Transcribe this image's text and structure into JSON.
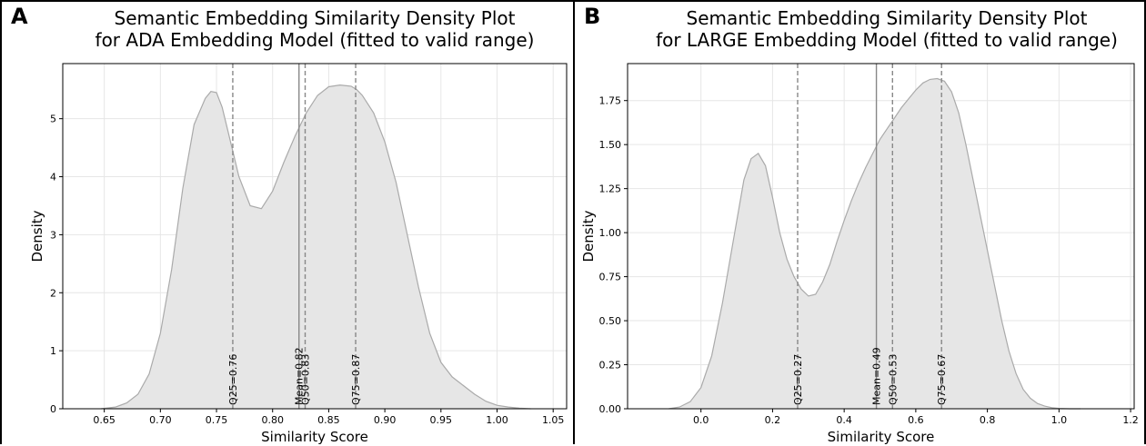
{
  "chart_data": [
    {
      "type": "area",
      "panel_label": "A",
      "title_lines": [
        "Semantic Embedding Similarity Density Plot",
        "for ADA Embedding Model (fitted to valid range)"
      ],
      "xlabel": "Similarity Score",
      "ylabel": "Density",
      "xlim": [
        0.613,
        1.062
      ],
      "ylim": [
        0,
        5.95
      ],
      "xticks": [
        0.65,
        0.7,
        0.75,
        0.8,
        0.85,
        0.9,
        0.95,
        1.0,
        1.05
      ],
      "xtick_labels": [
        "0.65",
        "0.70",
        "0.75",
        "0.80",
        "0.85",
        "0.90",
        "0.95",
        "1.00",
        "1.05"
      ],
      "yticks": [
        0,
        1,
        2,
        3,
        4,
        5
      ],
      "ytick_labels": [
        "0",
        "1",
        "2",
        "3",
        "4",
        "5"
      ],
      "grid": true,
      "fill_color": "#e6e6e6",
      "line_color": "#aaaaaa",
      "curve": {
        "x": [
          0.647,
          0.66,
          0.67,
          0.68,
          0.69,
          0.7,
          0.71,
          0.72,
          0.73,
          0.74,
          0.745,
          0.75,
          0.755,
          0.76,
          0.77,
          0.78,
          0.79,
          0.8,
          0.81,
          0.82,
          0.83,
          0.84,
          0.85,
          0.86,
          0.87,
          0.875,
          0.88,
          0.89,
          0.9,
          0.91,
          0.92,
          0.93,
          0.94,
          0.95,
          0.96,
          0.97,
          0.98,
          0.99,
          1.0,
          1.01,
          1.02,
          1.03
        ],
        "y": [
          0.0,
          0.03,
          0.1,
          0.25,
          0.6,
          1.3,
          2.4,
          3.8,
          4.9,
          5.35,
          5.47,
          5.45,
          5.2,
          4.8,
          4.0,
          3.5,
          3.45,
          3.75,
          4.25,
          4.7,
          5.1,
          5.4,
          5.55,
          5.58,
          5.56,
          5.5,
          5.4,
          5.1,
          4.6,
          3.9,
          3.0,
          2.1,
          1.3,
          0.8,
          0.55,
          0.4,
          0.25,
          0.13,
          0.06,
          0.03,
          0.01,
          0.0
        ]
      },
      "reference_lines": [
        {
          "label": "Q25=0.76",
          "x": 0.7645,
          "style": "dashed"
        },
        {
          "label": "Mean=0.82",
          "x": 0.8235,
          "style": "solid"
        },
        {
          "label": "Q50=0.83",
          "x": 0.829,
          "style": "dashed"
        },
        {
          "label": "Q75=0.87",
          "x": 0.874,
          "style": "dashed"
        }
      ]
    },
    {
      "type": "area",
      "panel_label": "B",
      "title_lines": [
        "Semantic Embedding Similarity Density Plot",
        "for LARGE Embedding Model (fitted to valid range)"
      ],
      "xlabel": "Similarity Score",
      "ylabel": "Density",
      "xlim": [
        -0.205,
        1.21
      ],
      "ylim": [
        0,
        1.96
      ],
      "xticks": [
        0.0,
        0.2,
        0.4,
        0.6,
        0.8,
        1.0,
        1.2
      ],
      "xtick_labels": [
        "0.0",
        "0.2",
        "0.4",
        "0.6",
        "0.8",
        "1.0",
        "1.2"
      ],
      "yticks": [
        0,
        0.25,
        0.5,
        0.75,
        1.0,
        1.25,
        1.5,
        1.75
      ],
      "ytick_labels": [
        "0.00",
        "0.25",
        "0.50",
        "0.75",
        "1.00",
        "1.25",
        "1.50",
        "1.75"
      ],
      "grid": true,
      "fill_color": "#e6e6e6",
      "line_color": "#aaaaaa",
      "curve": {
        "x": [
          -0.09,
          -0.06,
          -0.03,
          0.0,
          0.03,
          0.06,
          0.09,
          0.12,
          0.14,
          0.16,
          0.18,
          0.2,
          0.22,
          0.24,
          0.26,
          0.28,
          0.3,
          0.32,
          0.34,
          0.36,
          0.38,
          0.4,
          0.42,
          0.44,
          0.46,
          0.48,
          0.5,
          0.52,
          0.54,
          0.56,
          0.58,
          0.6,
          0.62,
          0.64,
          0.66,
          0.68,
          0.7,
          0.72,
          0.74,
          0.76,
          0.78,
          0.8,
          0.82,
          0.84,
          0.86,
          0.88,
          0.9,
          0.92,
          0.94,
          0.96,
          0.98,
          1.0,
          1.03,
          1.06
        ],
        "y": [
          0.0,
          0.01,
          0.04,
          0.12,
          0.3,
          0.6,
          0.95,
          1.3,
          1.42,
          1.45,
          1.38,
          1.2,
          1.0,
          0.85,
          0.75,
          0.68,
          0.64,
          0.65,
          0.72,
          0.82,
          0.95,
          1.07,
          1.18,
          1.28,
          1.37,
          1.45,
          1.53,
          1.59,
          1.65,
          1.71,
          1.76,
          1.81,
          1.85,
          1.87,
          1.875,
          1.86,
          1.8,
          1.68,
          1.5,
          1.3,
          1.1,
          0.9,
          0.7,
          0.5,
          0.33,
          0.2,
          0.11,
          0.06,
          0.03,
          0.015,
          0.006,
          0.002,
          0.0,
          0.0
        ]
      },
      "reference_lines": [
        {
          "label": "Q25=0.27",
          "x": 0.27,
          "style": "dashed"
        },
        {
          "label": "Mean=0.49",
          "x": 0.49,
          "style": "solid"
        },
        {
          "label": "Q50=0.53",
          "x": 0.535,
          "style": "dashed"
        },
        {
          "label": "Q75=0.67",
          "x": 0.672,
          "style": "dashed"
        }
      ]
    }
  ]
}
